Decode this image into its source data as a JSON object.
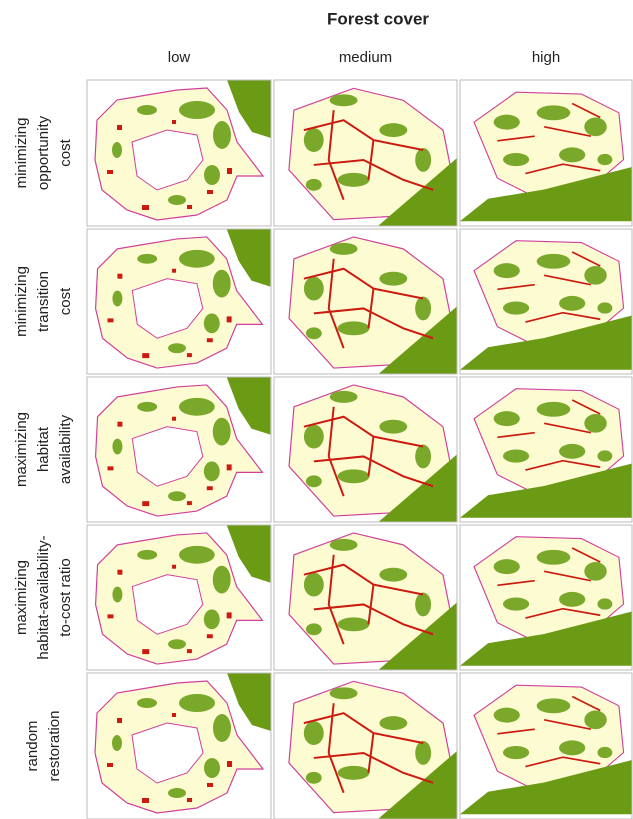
{
  "title": "Forest cover",
  "columns": [
    "low",
    "medium",
    "high"
  ],
  "rows": [
    [
      "minimizing",
      "opportunity",
      "cost"
    ],
    [
      "minimizing",
      "transition",
      "cost"
    ],
    [
      "maximizing",
      "habitat",
      "availability"
    ],
    [
      "maximizing",
      "habitat-availability-",
      "to-cost ratio"
    ],
    [
      "random",
      "restoration"
    ]
  ]
}
